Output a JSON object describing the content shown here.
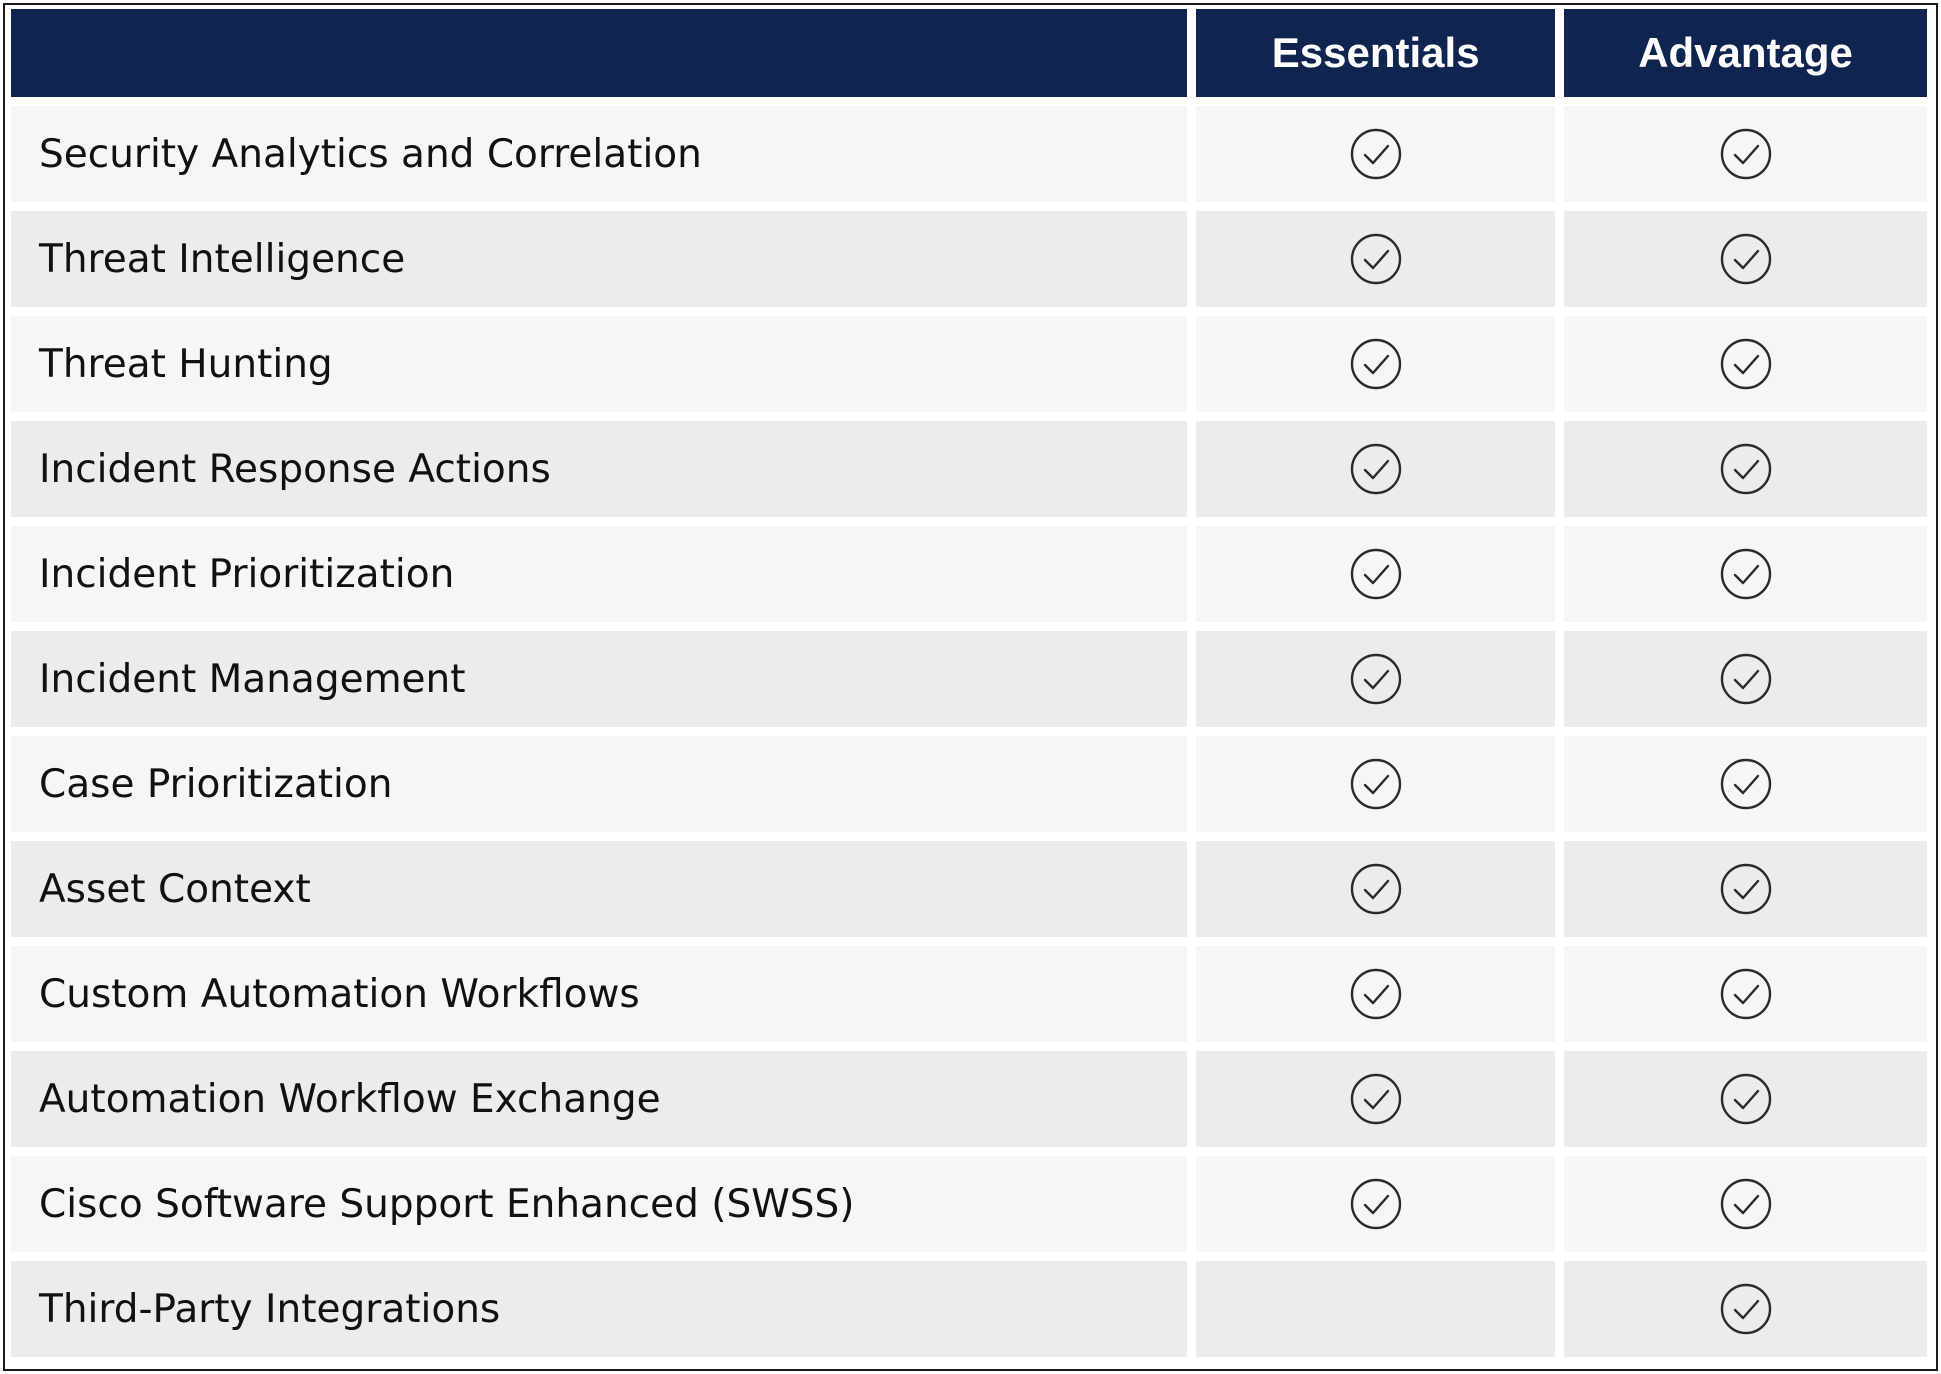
{
  "table": {
    "columns": [
      "",
      "Essentials",
      "Advantage"
    ],
    "check_icon": "check-circle-icon",
    "rows": [
      {
        "feature": "Security Analytics and Correlation",
        "essentials": true,
        "advantage": true
      },
      {
        "feature": "Threat Intelligence",
        "essentials": true,
        "advantage": true
      },
      {
        "feature": "Threat Hunting",
        "essentials": true,
        "advantage": true
      },
      {
        "feature": "Incident Response Actions",
        "essentials": true,
        "advantage": true
      },
      {
        "feature": "Incident Prioritization",
        "essentials": true,
        "advantage": true
      },
      {
        "feature": "Incident Management",
        "essentials": true,
        "advantage": true
      },
      {
        "feature": "Case Prioritization",
        "essentials": true,
        "advantage": true
      },
      {
        "feature": "Asset Context",
        "essentials": true,
        "advantage": true
      },
      {
        "feature": "Custom Automation Workflows",
        "essentials": true,
        "advantage": true
      },
      {
        "feature": "Automation Workflow Exchange",
        "essentials": true,
        "advantage": true
      },
      {
        "feature": "Cisco Software Support Enhanced (SWSS)",
        "essentials": true,
        "advantage": true
      },
      {
        "feature": "Third-Party Integrations",
        "essentials": false,
        "advantage": true
      }
    ]
  },
  "colors": {
    "header_bg": "#0f2550",
    "header_text": "#ffffff",
    "row_light": "#f6f6f6",
    "row_dark": "#ececec"
  }
}
